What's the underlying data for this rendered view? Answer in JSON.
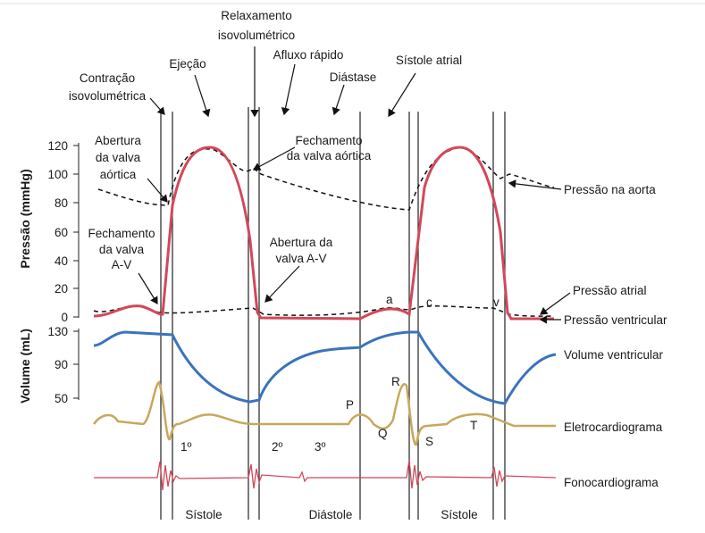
{
  "labels": {
    "relaxamento": [
      "Relaxamento",
      "isovolumétrico"
    ],
    "contracao": [
      "Contração",
      "isovolumétrica"
    ],
    "ejecao": "Ejeção",
    "afluxo": "Afluxo rápido",
    "diastase": "Diástase",
    "sistole_atrial": "Sístole atrial",
    "abertura_aortica": [
      "Abertura",
      "da valva",
      "aórtica"
    ],
    "fechamento_aortica": [
      "Fechamento",
      "da valva aórtica"
    ],
    "fechamento_av": [
      "Fechamento",
      "da valva",
      "A-V"
    ],
    "abertura_av": [
      "Abertura da",
      "valva A-V"
    ],
    "waves": {
      "a": "a",
      "c": "c",
      "v": "v",
      "P": "P",
      "R": "R",
      "Q": "Q",
      "S": "S",
      "T": "T"
    },
    "sounds": [
      "1º",
      "2º",
      "3º"
    ],
    "phases": [
      "Sístole",
      "Diástole",
      "Sístole"
    ]
  },
  "curves": [
    "Pressão na aorta",
    "Pressão atrial",
    "Pressão ventricular",
    "Volume ventricular",
    "Eletrocardiograma",
    "Fonocardiograma"
  ],
  "pressure_axis": {
    "title": "Pressão (mmHg)",
    "ticks": [
      120,
      100,
      80,
      60,
      40,
      20,
      0
    ]
  },
  "volume_axis": {
    "title": "Volume (mL)",
    "ticks": [
      130,
      90,
      50
    ]
  }
}
